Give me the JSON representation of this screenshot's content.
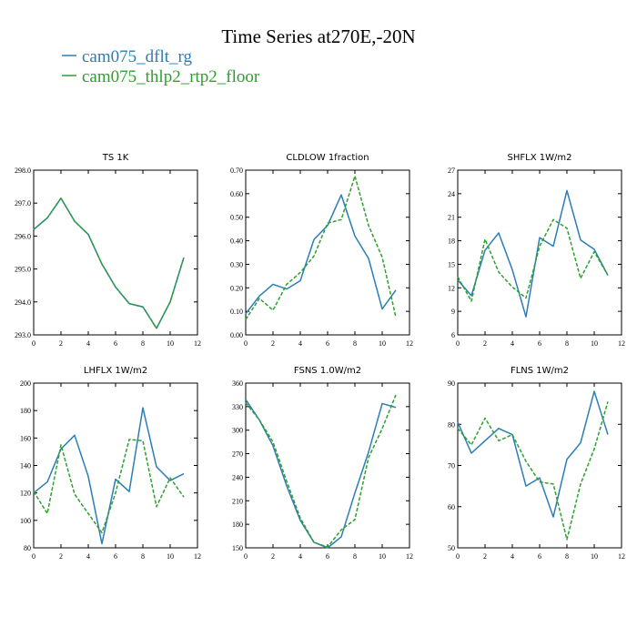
{
  "title": "Time Series at270E,-20N",
  "legend": [
    {
      "label": "cam075_dflt_rg",
      "color": "#2a7db5",
      "dash": false
    },
    {
      "label": "cam075_thlp2_rtp2_floor",
      "color": "#2ca02c",
      "dash": true
    }
  ],
  "chart_data": [
    {
      "type": "line",
      "title": "TS   1K",
      "x": [
        0,
        1,
        2,
        3,
        4,
        5,
        6,
        7,
        8,
        9,
        10,
        11
      ],
      "xlim": [
        0,
        12
      ],
      "xticks": [
        "0",
        "2",
        "4",
        "6",
        "8",
        "10",
        "12"
      ],
      "ylim": [
        293.0,
        298.0
      ],
      "yticks": [
        "293.0",
        "294.0",
        "295.0",
        "296.0",
        "297.0",
        "298.0"
      ],
      "series": [
        {
          "name": "cam075_dflt_rg",
          "values": [
            296.2,
            296.55,
            297.15,
            296.45,
            296.05,
            295.15,
            294.45,
            293.95,
            293.85,
            293.2,
            294.0,
            295.35
          ]
        },
        {
          "name": "cam075_thlp2_rtp2_floor",
          "values": [
            296.2,
            296.55,
            297.15,
            296.45,
            296.05,
            295.15,
            294.45,
            293.95,
            293.85,
            293.2,
            294.0,
            295.35
          ]
        }
      ]
    },
    {
      "type": "line",
      "title": "CLDLOW   1fraction",
      "x": [
        0,
        1,
        2,
        3,
        4,
        5,
        6,
        7,
        8,
        9,
        10,
        11
      ],
      "xlim": [
        0,
        12
      ],
      "xticks": [
        "0",
        "2",
        "4",
        "6",
        "8",
        "10",
        "12"
      ],
      "ylim": [
        0.0,
        0.7
      ],
      "yticks": [
        "0.00",
        "0.10",
        "0.20",
        "0.30",
        "0.40",
        "0.50",
        "0.60",
        "0.70"
      ],
      "series": [
        {
          "name": "cam075_dflt_rg",
          "values": [
            0.09,
            0.165,
            0.215,
            0.195,
            0.23,
            0.405,
            0.465,
            0.595,
            0.42,
            0.325,
            0.11,
            0.19
          ]
        },
        {
          "name": "cam075_thlp2_rtp2_floor",
          "values": [
            0.065,
            0.155,
            0.105,
            0.215,
            0.265,
            0.335,
            0.475,
            0.49,
            0.675,
            0.465,
            0.33,
            0.075
          ]
        }
      ]
    },
    {
      "type": "line",
      "title": "SHFLX   1W/m2",
      "x": [
        0,
        1,
        2,
        3,
        4,
        5,
        6,
        7,
        8,
        9,
        10,
        11
      ],
      "xlim": [
        0,
        12
      ],
      "xticks": [
        "0",
        "2",
        "4",
        "6",
        "8",
        "10",
        "12"
      ],
      "ylim": [
        6,
        27
      ],
      "yticks": [
        "6",
        "9",
        "12",
        "15",
        "18",
        "21",
        "24",
        "27"
      ],
      "series": [
        {
          "name": "cam075_dflt_rg",
          "values": [
            13.0,
            11.0,
            16.8,
            19.0,
            14.3,
            8.3,
            18.4,
            17.3,
            24.4,
            18.1,
            16.9,
            13.6
          ]
        },
        {
          "name": "cam075_thlp2_rtp2_floor",
          "values": [
            13.4,
            10.3,
            18.2,
            14.0,
            12.1,
            10.7,
            17.3,
            20.7,
            19.6,
            13.2,
            16.6,
            13.6
          ]
        }
      ]
    },
    {
      "type": "line",
      "title": "LHFLX   1W/m2",
      "x": [
        0,
        1,
        2,
        3,
        4,
        5,
        6,
        7,
        8,
        9,
        10,
        11
      ],
      "xlim": [
        0,
        12
      ],
      "xticks": [
        "0",
        "2",
        "4",
        "6",
        "8",
        "10",
        "12"
      ],
      "ylim": [
        80,
        200
      ],
      "yticks": [
        "80",
        "100",
        "120",
        "140",
        "160",
        "180",
        "200"
      ],
      "series": [
        {
          "name": "cam075_dflt_rg",
          "values": [
            120,
            128,
            152,
            162,
            132,
            83,
            130,
            121,
            182,
            139,
            129,
            134
          ]
        },
        {
          "name": "cam075_thlp2_rtp2_floor",
          "values": [
            121,
            105,
            155,
            119,
            105,
            91,
            120,
            159,
            158,
            110,
            131,
            117
          ]
        }
      ]
    },
    {
      "type": "line",
      "title": "FSNS   1.0W/m2",
      "x": [
        0,
        1,
        2,
        3,
        4,
        5,
        6,
        7,
        8,
        9,
        10,
        11
      ],
      "xlim": [
        0,
        12
      ],
      "xticks": [
        "0",
        "2",
        "4",
        "6",
        "8",
        "10",
        "12"
      ],
      "ylim": [
        150,
        360
      ],
      "yticks": [
        "150",
        "180",
        "210",
        "240",
        "270",
        "300",
        "330",
        "360"
      ],
      "series": [
        {
          "name": "cam075_dflt_rg",
          "values": [
            339,
            313,
            280,
            229,
            185,
            157,
            150,
            164,
            220,
            272,
            334,
            329
          ]
        },
        {
          "name": "cam075_thlp2_rtp2_floor",
          "values": [
            335,
            313,
            285,
            235,
            188,
            157,
            151,
            173,
            186,
            265,
            302,
            345
          ]
        }
      ]
    },
    {
      "type": "line",
      "title": "FLNS   1W/m2",
      "x": [
        0,
        1,
        2,
        3,
        4,
        5,
        6,
        7,
        8,
        9,
        10,
        11
      ],
      "xlim": [
        0,
        12
      ],
      "xticks": [
        "0",
        "2",
        "4",
        "6",
        "8",
        "10",
        "12"
      ],
      "ylim": [
        50,
        90
      ],
      "yticks": [
        "50",
        "60",
        "70",
        "80",
        "90"
      ],
      "series": [
        {
          "name": "cam075_dflt_rg",
          "values": [
            80.5,
            73,
            76,
            79,
            77.5,
            65,
            67,
            57.5,
            71.5,
            75.5,
            88,
            77.5
          ]
        },
        {
          "name": "cam075_thlp2_rtp2_floor",
          "values": [
            79,
            75,
            81.5,
            76,
            77.5,
            71,
            66,
            65.5,
            52,
            65.5,
            74,
            85.5
          ]
        }
      ]
    }
  ]
}
